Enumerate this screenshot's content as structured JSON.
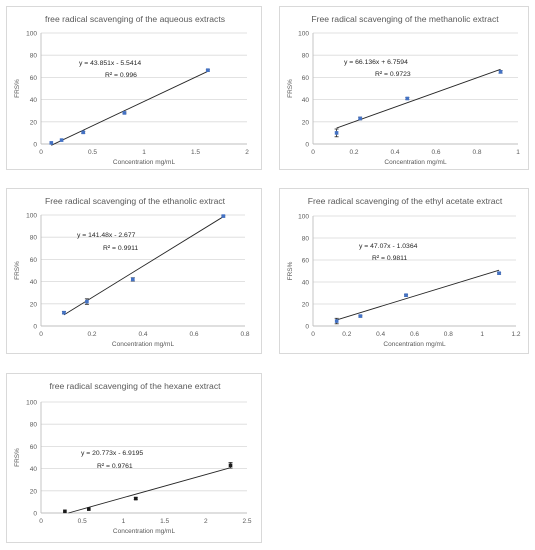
{
  "chart_data": [
    {
      "type": "scatter",
      "title": "free radical scavenging of the aqueous extracts",
      "xlabel": "Concentration mg/mL",
      "ylabel": "FRS%",
      "xlim": [
        0,
        2
      ],
      "xticks": [
        0,
        0.5,
        1,
        1.5,
        2
      ],
      "xtick_labels": [
        "0",
        "0.5",
        "1",
        "1.5",
        "2"
      ],
      "ylim": [
        0,
        100
      ],
      "yticks": [
        0,
        20,
        40,
        60,
        80,
        100
      ],
      "ytick_labels": [
        "0",
        "20",
        "40",
        "60",
        "80",
        "100"
      ],
      "grid": "horizontal",
      "marker_color": "#4472c4",
      "series": [
        {
          "x": [
            0.1,
            0.2,
            0.41,
            0.81,
            1.62
          ],
          "y": [
            1,
            3.5,
            10.5,
            28,
            66.5
          ],
          "error": [
            0.6,
            0.6,
            0.8,
            0.8,
            0.8
          ]
        }
      ],
      "trendline": {
        "slope": 43.851,
        "intercept": -5.5414,
        "x_range": [
          0.1,
          1.62
        ]
      },
      "equation": "y = 43.851x - 5.5414",
      "r2": "R² = 0.996"
    },
    {
      "type": "scatter",
      "title": "Free radical scavenging of the methanolic extract",
      "xlabel": "Concentration mg/mL",
      "ylabel": "FRS%",
      "xlim": [
        0,
        1
      ],
      "xticks": [
        0,
        0.2,
        0.4,
        0.6,
        0.8,
        1
      ],
      "xtick_labels": [
        "0",
        "0.2",
        "0.4",
        "0.6",
        "0.8",
        "1"
      ],
      "ylim": [
        0,
        100
      ],
      "yticks": [
        0,
        20,
        40,
        60,
        80,
        100
      ],
      "ytick_labels": [
        "0",
        "20",
        "40",
        "60",
        "80",
        "100"
      ],
      "grid": "horizontal",
      "marker_color": "#4472c4",
      "series": [
        {
          "x": [
            0.115,
            0.23,
            0.46,
            0.915
          ],
          "y": [
            10,
            23,
            41,
            65
          ],
          "error": [
            3.5,
            1.2,
            0.8,
            1.2
          ]
        }
      ],
      "trendline": {
        "slope": 66.136,
        "intercept": 6.7594,
        "x_range": [
          0.115,
          0.915
        ]
      },
      "equation": "y = 66.136x + 6.7594",
      "r2": "R² = 0.9723"
    },
    {
      "type": "scatter",
      "title": "Free radical scavenging of the ethanolic extract",
      "xlabel": "Concentration mg/mL",
      "ylabel": "FRS%",
      "xlim": [
        0,
        0.8
      ],
      "xticks": [
        0,
        0.2,
        0.4,
        0.6,
        0.8
      ],
      "xtick_labels": [
        "0",
        "0.2",
        "0.4",
        "0.6",
        "0.8"
      ],
      "ylim": [
        0,
        100
      ],
      "yticks": [
        0,
        20,
        40,
        60,
        80,
        100
      ],
      "ytick_labels": [
        "0",
        "20",
        "40",
        "60",
        "80",
        "100"
      ],
      "grid": "horizontal",
      "marker_color": "#4472c4",
      "series": [
        {
          "x": [
            0.09,
            0.18,
            0.36,
            0.715
          ],
          "y": [
            12,
            22,
            42,
            99
          ],
          "error": [
            1,
            2.5,
            1.5,
            0.8
          ]
        }
      ],
      "trendline": {
        "slope": 141.48,
        "intercept": -2.677,
        "x_range": [
          0.09,
          0.715
        ]
      },
      "equation": "y = 141.48x - 2.677",
      "r2": "R² = 0.9911"
    },
    {
      "type": "scatter",
      "title": "Free radical scavenging of the ethyl acetate extract",
      "xlabel": "Concentration mg/mL",
      "ylabel": "FRS%",
      "xlim": [
        0,
        1.2
      ],
      "xticks": [
        0,
        0.2,
        0.4,
        0.6,
        0.8,
        1,
        1.2
      ],
      "xtick_labels": [
        "0",
        "0.2",
        "0.4",
        "0.6",
        "0.8",
        "1",
        "1.2"
      ],
      "ylim": [
        0,
        100
      ],
      "yticks": [
        0,
        20,
        40,
        60,
        80,
        100
      ],
      "ytick_labels": [
        "0",
        "20",
        "40",
        "60",
        "80",
        "100"
      ],
      "grid": "horizontal",
      "marker_color": "#4472c4",
      "series": [
        {
          "x": [
            0.14,
            0.28,
            0.55,
            1.1
          ],
          "y": [
            4.5,
            9,
            28,
            48
          ],
          "error": [
            2.5,
            0.8,
            0.8,
            0.8
          ]
        }
      ],
      "trendline": {
        "slope": 47.07,
        "intercept": -1.0364,
        "x_range": [
          0.14,
          1.1
        ]
      },
      "equation": "y = 47.07x - 1.0364",
      "r2": "R² = 0.9811"
    },
    {
      "type": "scatter",
      "title": "free radical scavenging of the hexane extract",
      "xlabel": "Concentration mg/mL",
      "ylabel": "FRS%",
      "xlim": [
        0,
        2.5
      ],
      "xticks": [
        0,
        0.5,
        1,
        1.5,
        2,
        2.5
      ],
      "xtick_labels": [
        "0",
        "0.5",
        "1",
        "1.5",
        "2",
        "2.5"
      ],
      "ylim": [
        0,
        100
      ],
      "yticks": [
        0,
        20,
        40,
        60,
        80,
        100
      ],
      "ytick_labels": [
        "0",
        "20",
        "40",
        "60",
        "80",
        "100"
      ],
      "grid": "horizontal",
      "marker_color": "#1a1a1a",
      "series": [
        {
          "x": [
            0.29,
            0.58,
            1.15,
            2.3
          ],
          "y": [
            1.5,
            3.5,
            13,
            43
          ],
          "error": [
            0.6,
            0.6,
            0.8,
            2.5
          ]
        }
      ],
      "trendline": {
        "slope": 20.773,
        "intercept": -6.9195,
        "x_range": [
          0.333,
          2.3
        ]
      },
      "equation": "y = 20.773x - 6.9195",
      "r2": "R² = 0.9761"
    }
  ]
}
